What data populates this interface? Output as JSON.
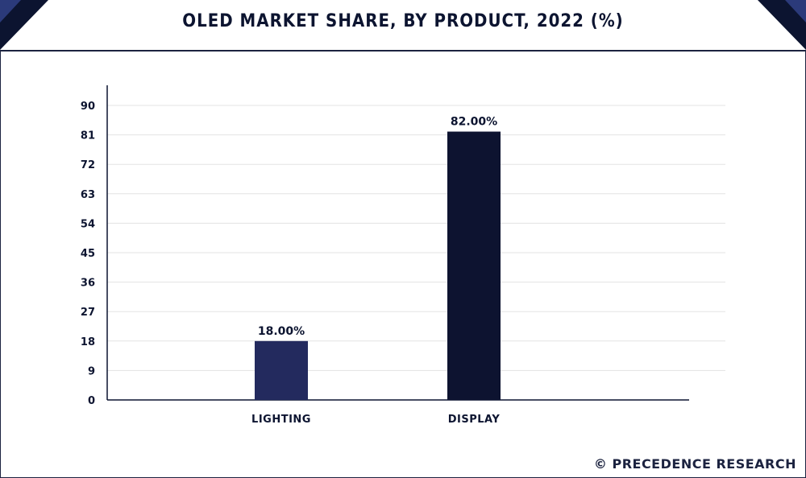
{
  "header": {
    "title": "OLED MARKET SHARE, BY PRODUCT, 2022 (%)"
  },
  "footer": {
    "copyright": "© PRECEDENCE RESEARCH"
  },
  "colors": {
    "navy": "#0c1430",
    "accent_blue": "#2b3a7a",
    "bar_lighting": "#232a5e",
    "bar_display": "#0d1330"
  },
  "chart_data": {
    "type": "bar",
    "title": "OLED MARKET SHARE, BY PRODUCT, 2022 (%)",
    "categories": [
      "LIGHTING",
      "DISPLAY"
    ],
    "values": [
      18,
      82
    ],
    "data_labels": [
      "18.00%",
      "82.00%"
    ],
    "ylim": [
      0,
      90
    ],
    "yticks": [
      0,
      9,
      18,
      27,
      36,
      45,
      54,
      63,
      72,
      81,
      90
    ],
    "grid": true,
    "xlabel": "",
    "ylabel": ""
  }
}
